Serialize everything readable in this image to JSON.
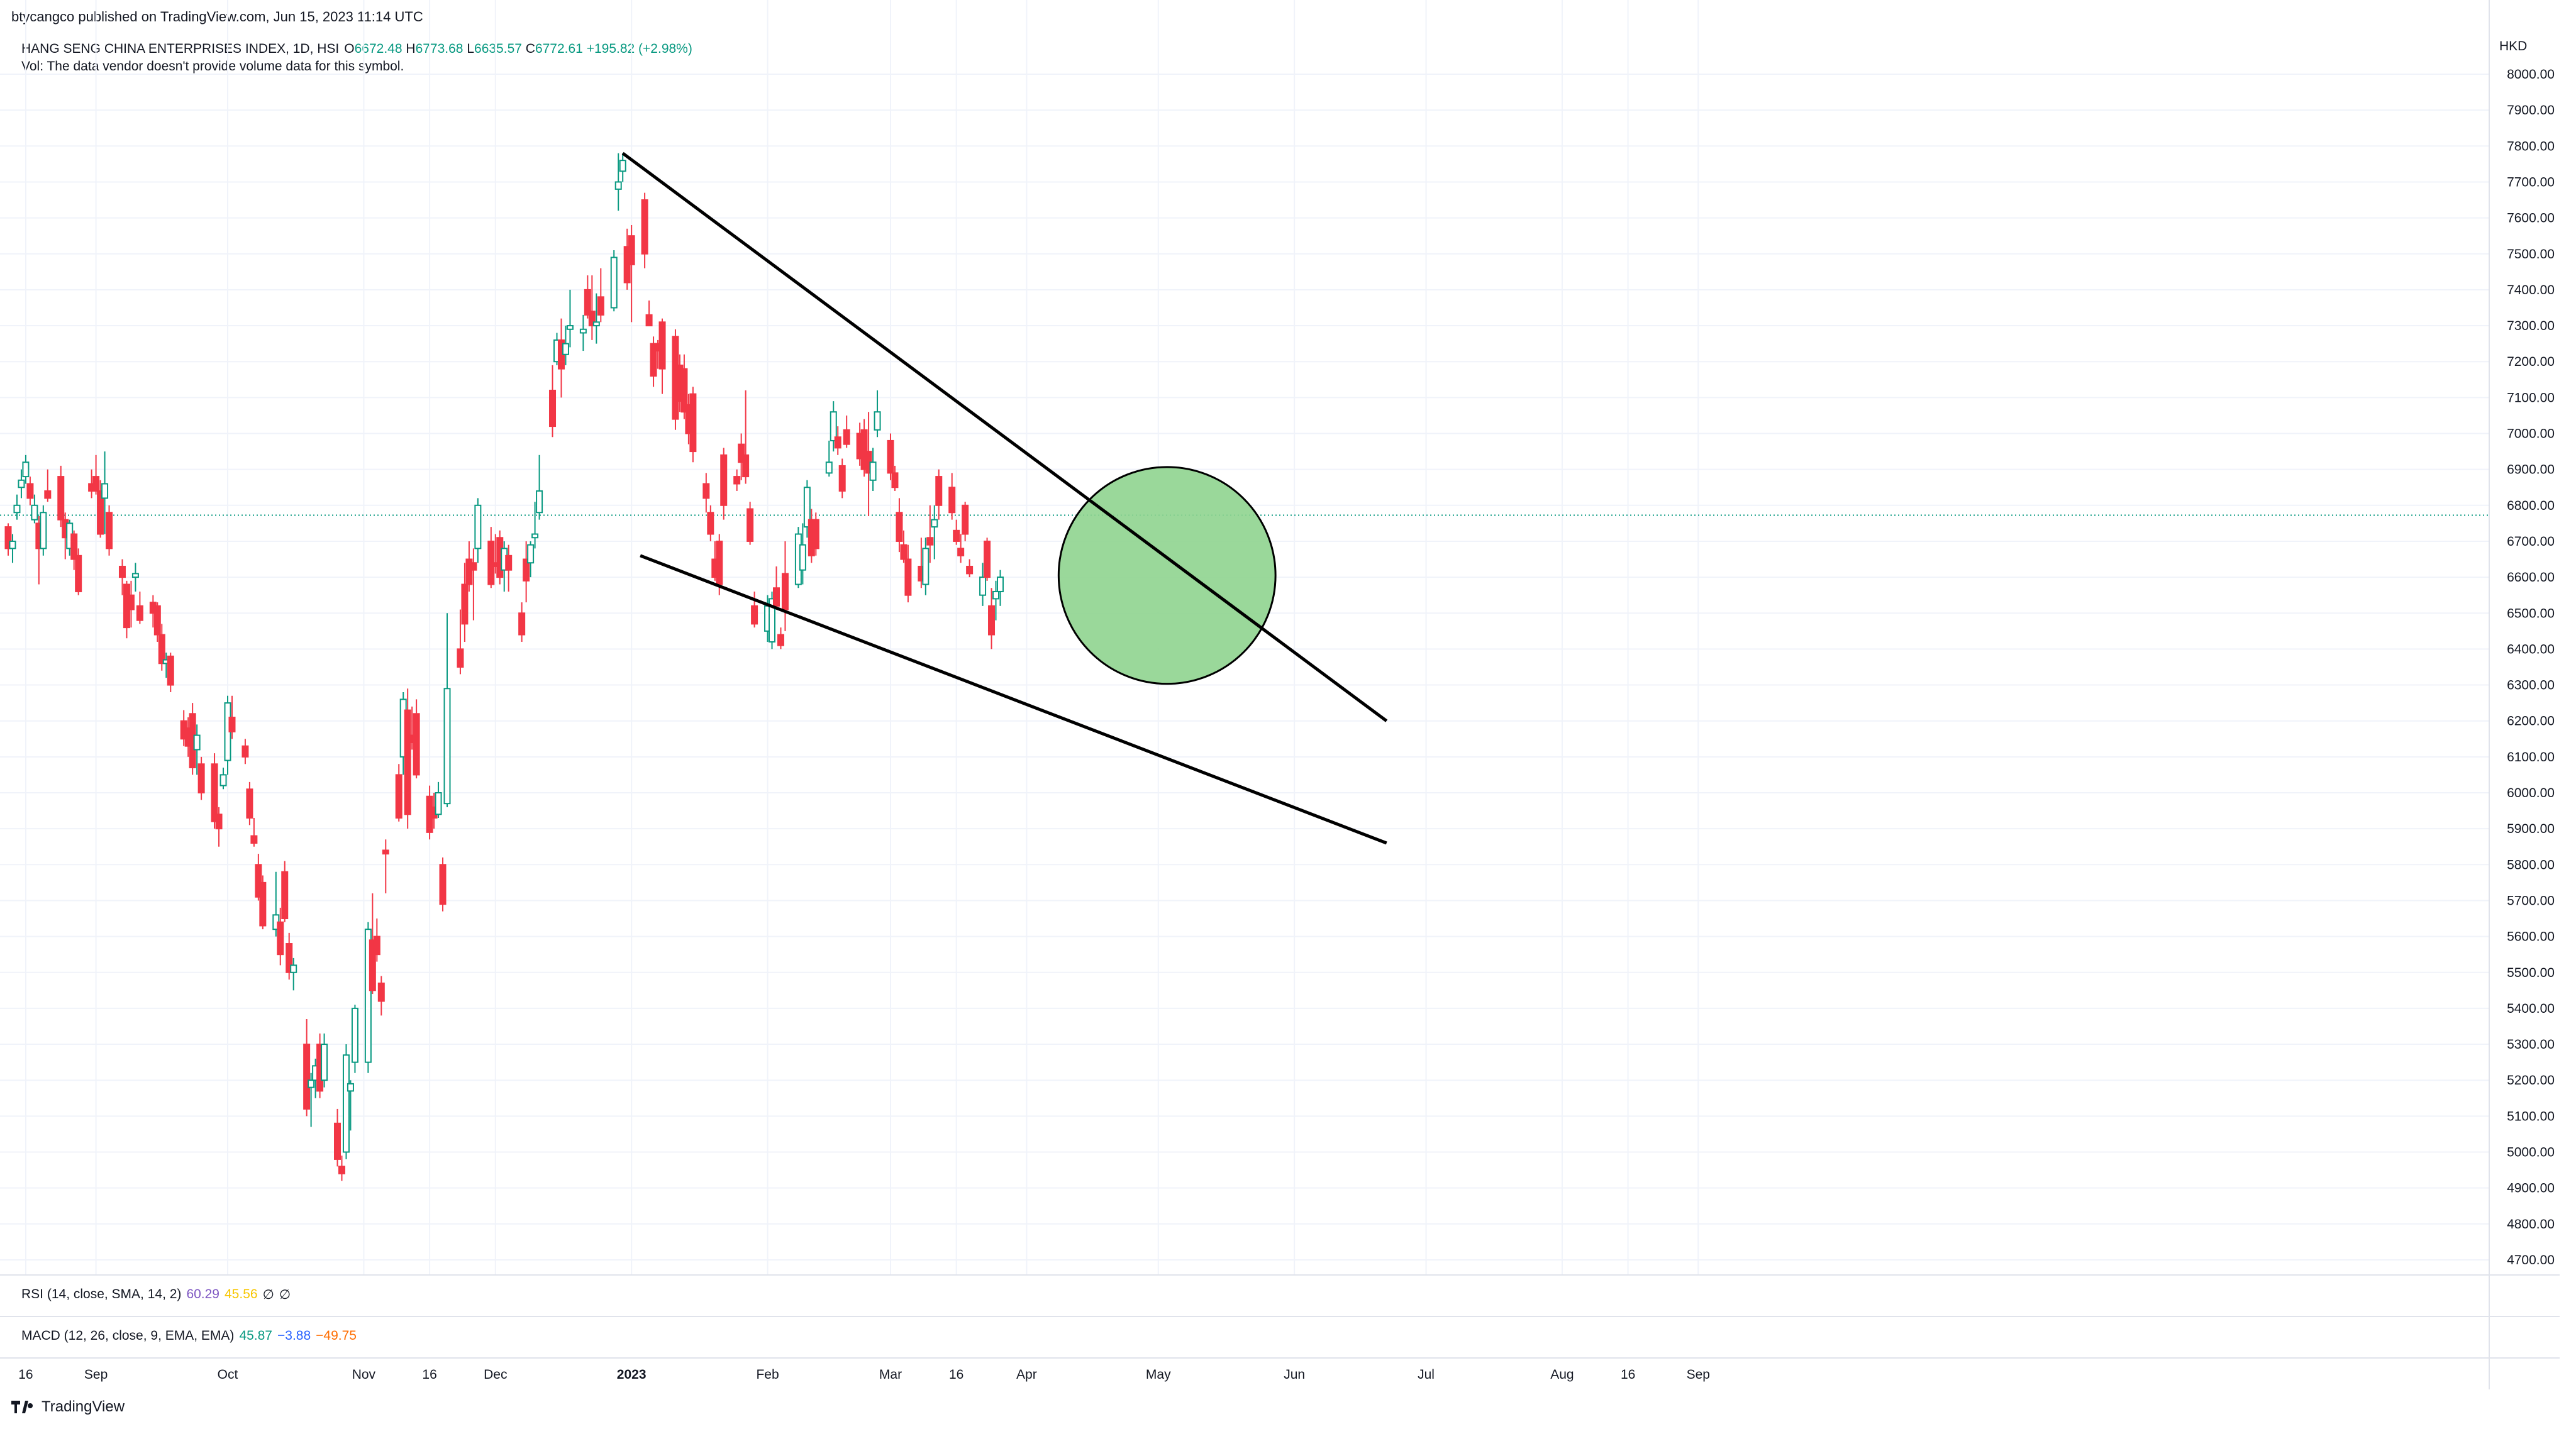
{
  "publisher_line": "btycangco published on TradingView.com, Jun 15, 2023 11:14 UTC",
  "legend": {
    "symbol": "HANG SENG CHINA ENTERPRISES INDEX, 1D, HSI",
    "o_label": "O",
    "o_value": "6672.48",
    "h_label": "H",
    "h_value": "6773.68",
    "l_label": "L",
    "l_value": "6635.57",
    "c_label": "C",
    "c_value": "6772.61",
    "change": "+195.82 (+2.98%)",
    "vol_note": "Vol: The data vendor doesn't provide volume data for this symbol."
  },
  "indicators": {
    "rsi": {
      "label": "RSI (14, close, SMA, 14, 2)",
      "v1": "60.29",
      "v2": "45.56",
      "v3": "∅",
      "v4": "∅"
    },
    "macd": {
      "label": "MACD (12, 26, close, 9, EMA, EMA)",
      "v1": "45.87",
      "v2": "−3.88",
      "v3": "−49.75"
    }
  },
  "brand": "TradingView",
  "colors": {
    "up": "#089981",
    "down": "#f23645",
    "trendline": "#000000",
    "highlight_fill": "#8fd48f",
    "highlight_stroke": "#000000",
    "last_price_line": "#089981"
  },
  "chart_data": {
    "type": "candlestick",
    "currency": "HKD",
    "y_ticks": [
      "8000.00",
      "7900.00",
      "7800.00",
      "7700.00",
      "7600.00",
      "7500.00",
      "7400.00",
      "7300.00",
      "7200.00",
      "7100.00",
      "7000.00",
      "6900.00",
      "6800.00",
      "6700.00",
      "6600.00",
      "6500.00",
      "6400.00",
      "6300.00",
      "6200.00",
      "6100.00",
      "6000.00",
      "5900.00",
      "5800.00",
      "5700.00",
      "5600.00",
      "5500.00",
      "5400.00",
      "5300.00",
      "5200.00",
      "5100.00",
      "5000.00",
      "4900.00",
      "4800.00",
      "4700.00"
    ],
    "ylim": [
      4650,
      8050
    ],
    "x_ticks": [
      {
        "label": "16",
        "day": 0,
        "bold": false
      },
      {
        "label": "Sep",
        "day": 16,
        "bold": false
      },
      {
        "label": "Oct",
        "day": 46,
        "bold": false
      },
      {
        "label": "Nov",
        "day": 77,
        "bold": false
      },
      {
        "label": "16",
        "day": 92,
        "bold": false
      },
      {
        "label": "Dec",
        "day": 107,
        "bold": false
      },
      {
        "label": "2023",
        "day": 138,
        "bold": true
      },
      {
        "label": "Feb",
        "day": 169,
        "bold": false
      },
      {
        "label": "Mar",
        "day": 197,
        "bold": false
      },
      {
        "label": "16",
        "day": 212,
        "bold": false
      },
      {
        "label": "Apr",
        "day": 228,
        "bold": false
      },
      {
        "label": "May",
        "day": 258,
        "bold": false
      },
      {
        "label": "Jun",
        "day": 289,
        "bold": false
      },
      {
        "label": "Jul",
        "day": 319,
        "bold": false
      },
      {
        "label": "Aug",
        "day": 350,
        "bold": false
      },
      {
        "label": "16",
        "day": 365,
        "bold": false
      },
      {
        "label": "Sep",
        "day": 381,
        "bold": false
      }
    ],
    "last_price": 6772.61,
    "candles": [
      [
        -4,
        6740,
        6750,
        6660,
        6680
      ],
      [
        -3,
        6680,
        6720,
        6640,
        6700
      ],
      [
        -2,
        6780,
        6830,
        6760,
        6800
      ],
      [
        -1,
        6850,
        6900,
        6820,
        6870
      ],
      [
        0,
        6880,
        6940,
        6860,
        6920
      ],
      [
        1,
        6860,
        6880,
        6800,
        6820
      ],
      [
        2,
        6760,
        6830,
        6750,
        6800
      ],
      [
        3,
        6750,
        6770,
        6580,
        6680
      ],
      [
        4,
        6680,
        6800,
        6660,
        6780
      ],
      [
        5,
        6840,
        6900,
        6810,
        6820
      ],
      [
        8,
        6880,
        6910,
        6740,
        6760
      ],
      [
        9,
        6760,
        6780,
        6650,
        6710
      ],
      [
        10,
        6680,
        6760,
        6660,
        6750
      ],
      [
        11,
        6720,
        6730,
        6620,
        6650
      ],
      [
        12,
        6660,
        6680,
        6550,
        6560
      ],
      [
        15,
        6860,
        6900,
        6820,
        6840
      ],
      [
        16,
        6880,
        6940,
        6830,
        6840
      ],
      [
        17,
        6840,
        6870,
        6710,
        6720
      ],
      [
        18,
        6820,
        6950,
        6720,
        6860
      ],
      [
        19,
        6780,
        6800,
        6660,
        6680
      ],
      [
        22,
        6630,
        6650,
        6550,
        6600
      ],
      [
        23,
        6580,
        6590,
        6430,
        6460
      ],
      [
        24,
        6550,
        6590,
        6460,
        6510
      ],
      [
        25,
        6600,
        6640,
        6560,
        6610
      ],
      [
        26,
        6520,
        6560,
        6470,
        6480
      ],
      [
        29,
        6530,
        6550,
        6460,
        6500
      ],
      [
        30,
        6520,
        6530,
        6420,
        6440
      ],
      [
        31,
        6440,
        6470,
        6340,
        6360
      ],
      [
        32,
        6360,
        6390,
        6320,
        6370
      ],
      [
        33,
        6380,
        6390,
        6280,
        6300
      ],
      [
        36,
        6200,
        6230,
        6130,
        6150
      ],
      [
        37,
        6180,
        6210,
        6100,
        6130
      ],
      [
        38,
        6220,
        6250,
        6050,
        6070
      ],
      [
        39,
        6120,
        6190,
        6050,
        6160
      ],
      [
        40,
        6080,
        6100,
        5980,
        6000
      ],
      [
        43,
        6080,
        6110,
        5900,
        5920
      ],
      [
        44,
        5940,
        5960,
        5850,
        5900
      ],
      [
        45,
        6020,
        6070,
        6010,
        6050
      ],
      [
        46,
        6090,
        6270,
        6050,
        6250
      ],
      [
        47,
        6210,
        6270,
        6150,
        6170
      ],
      [
        50,
        6130,
        6150,
        6080,
        6100
      ],
      [
        51,
        6010,
        6030,
        5910,
        5930
      ],
      [
        52,
        5880,
        5930,
        5850,
        5860
      ],
      [
        53,
        5800,
        5830,
        5700,
        5710
      ],
      [
        54,
        5750,
        5770,
        5620,
        5630
      ],
      [
        57,
        5620,
        5780,
        5600,
        5660
      ],
      [
        58,
        5640,
        5680,
        5520,
        5550
      ],
      [
        59,
        5780,
        5810,
        5640,
        5650
      ],
      [
        60,
        5580,
        5610,
        5480,
        5500
      ],
      [
        61,
        5500,
        5540,
        5450,
        5520
      ],
      [
        64,
        5300,
        5370,
        5100,
        5120
      ],
      [
        65,
        5180,
        5220,
        5070,
        5200
      ],
      [
        66,
        5200,
        5260,
        5150,
        5240
      ],
      [
        67,
        5300,
        5330,
        5150,
        5170
      ],
      [
        68,
        5200,
        5330,
        5180,
        5300
      ],
      [
        71,
        5080,
        5120,
        4960,
        4980
      ],
      [
        72,
        4960,
        4990,
        4920,
        4940
      ],
      [
        73,
        5000,
        5300,
        4980,
        5270
      ],
      [
        74,
        5170,
        5200,
        5060,
        5190
      ],
      [
        75,
        5250,
        5410,
        5220,
        5400
      ],
      [
        78,
        5250,
        5640,
        5220,
        5620
      ],
      [
        79,
        5590,
        5720,
        5440,
        5450
      ],
      [
        80,
        5600,
        5650,
        5530,
        5550
      ],
      [
        81,
        5470,
        5490,
        5380,
        5420
      ],
      [
        82,
        5840,
        5870,
        5720,
        5830
      ],
      [
        85,
        6050,
        6080,
        5920,
        5930
      ],
      [
        86,
        6100,
        6280,
        6050,
        6260
      ],
      [
        87,
        6230,
        6290,
        5900,
        5940
      ],
      [
        88,
        6160,
        6240,
        6120,
        6140
      ],
      [
        89,
        6220,
        6260,
        6040,
        6050
      ],
      [
        92,
        5990,
        6020,
        5870,
        5890
      ],
      [
        93,
        5960,
        6000,
        5900,
        5930
      ],
      [
        94,
        5940,
        6030,
        5930,
        6000
      ],
      [
        95,
        5800,
        5820,
        5670,
        5690
      ],
      [
        96,
        5970,
        6500,
        5960,
        6290
      ],
      [
        99,
        6400,
        6510,
        6330,
        6350
      ],
      [
        100,
        6580,
        6640,
        6420,
        6470
      ],
      [
        101,
        6650,
        6700,
        6560,
        6580
      ],
      [
        102,
        6640,
        6680,
        6480,
        6620
      ],
      [
        103,
        6680,
        6820,
        6640,
        6800
      ],
      [
        106,
        6700,
        6740,
        6570,
        6580
      ],
      [
        107,
        6640,
        6720,
        6610,
        6630
      ],
      [
        108,
        6710,
        6730,
        6580,
        6600
      ],
      [
        109,
        6620,
        6700,
        6560,
        6680
      ],
      [
        110,
        6660,
        6690,
        6560,
        6620
      ],
      [
        113,
        6500,
        6530,
        6420,
        6440
      ],
      [
        114,
        6650,
        6700,
        6530,
        6590
      ],
      [
        115,
        6640,
        6700,
        6600,
        6690
      ],
      [
        116,
        6710,
        6810,
        6680,
        6720
      ],
      [
        117,
        6780,
        6940,
        6760,
        6840
      ],
      [
        120,
        7120,
        7190,
        6990,
        7020
      ],
      [
        121,
        7200,
        7280,
        7190,
        7260
      ],
      [
        122,
        7260,
        7320,
        7100,
        7180
      ],
      [
        123,
        7220,
        7300,
        7190,
        7250
      ],
      [
        124,
        7290,
        7400,
        7240,
        7300
      ],
      [
        127,
        7280,
        7330,
        7230,
        7290
      ],
      [
        128,
        7400,
        7440,
        7320,
        7330
      ],
      [
        129,
        7340,
        7440,
        7260,
        7300
      ],
      [
        130,
        7300,
        7390,
        7250,
        7310
      ],
      [
        131,
        7380,
        7460,
        7310,
        7330
      ],
      [
        134,
        7350,
        7510,
        7340,
        7490
      ],
      [
        135,
        7680,
        7780,
        7620,
        7700
      ],
      [
        136,
        7730,
        7780,
        7700,
        7760
      ],
      [
        137,
        7520,
        7570,
        7400,
        7420
      ],
      [
        138,
        7550,
        7580,
        7310,
        7470
      ],
      [
        141,
        7650,
        7670,
        7460,
        7500
      ],
      [
        142,
        7330,
        7370,
        7300,
        7300
      ],
      [
        143,
        7250,
        7270,
        7130,
        7160
      ],
      [
        144,
        7250,
        7260,
        7180,
        7230
      ],
      [
        145,
        7310,
        7320,
        7110,
        7180
      ],
      [
        148,
        7270,
        7290,
        7010,
        7040
      ],
      [
        149,
        7190,
        7220,
        7060,
        7090
      ],
      [
        150,
        7180,
        7220,
        7040,
        7060
      ],
      [
        151,
        7080,
        7110,
        6970,
        7000
      ],
      [
        152,
        7110,
        7130,
        6920,
        6950
      ],
      [
        155,
        6860,
        6890,
        6780,
        6820
      ],
      [
        156,
        6780,
        6800,
        6700,
        6720
      ],
      [
        157,
        6650,
        6700,
        6590,
        6600
      ],
      [
        158,
        6700,
        6720,
        6550,
        6580
      ],
      [
        159,
        6940,
        6960,
        6760,
        6800
      ],
      [
        162,
        6880,
        6900,
        6840,
        6860
      ],
      [
        163,
        6970,
        7000,
        6870,
        6920
      ],
      [
        164,
        6940,
        7120,
        6860,
        6880
      ],
      [
        165,
        6790,
        6810,
        6690,
        6700
      ],
      [
        166,
        6520,
        6560,
        6460,
        6470
      ],
      [
        169,
        6450,
        6550,
        6420,
        6520
      ],
      [
        170,
        6420,
        6560,
        6400,
        6540
      ],
      [
        171,
        6570,
        6630,
        6510,
        6520
      ],
      [
        172,
        6440,
        6460,
        6400,
        6410
      ],
      [
        173,
        6610,
        6700,
        6450,
        6510
      ],
      [
        176,
        6580,
        6740,
        6570,
        6720
      ],
      [
        177,
        6620,
        6750,
        6580,
        6690
      ],
      [
        178,
        6740,
        6870,
        6710,
        6850
      ],
      [
        179,
        6760,
        6790,
        6640,
        6660
      ],
      [
        180,
        6760,
        6780,
        6660,
        6680
      ],
      [
        183,
        6890,
        6980,
        6880,
        6920
      ],
      [
        184,
        6980,
        7090,
        6950,
        7060
      ],
      [
        185,
        6990,
        7020,
        6940,
        6960
      ],
      [
        186,
        6910,
        6930,
        6820,
        6840
      ],
      [
        187,
        7010,
        7050,
        6960,
        6970
      ],
      [
        190,
        7000,
        7030,
        6910,
        6930
      ],
      [
        191,
        7010,
        7040,
        6880,
        6900
      ],
      [
        192,
        6950,
        7060,
        6770,
        6890
      ],
      [
        193,
        6870,
        6960,
        6840,
        6920
      ],
      [
        194,
        7010,
        7120,
        6990,
        7060
      ],
      [
        197,
        6980,
        7000,
        6870,
        6890
      ],
      [
        198,
        6890,
        6910,
        6840,
        6850
      ],
      [
        199,
        6780,
        6820,
        6670,
        6700
      ],
      [
        200,
        6690,
        6730,
        6640,
        6650
      ],
      [
        201,
        6650,
        6690,
        6530,
        6550
      ],
      [
        204,
        6630,
        6710,
        6570,
        6590
      ],
      [
        205,
        6580,
        6710,
        6550,
        6680
      ],
      [
        206,
        6710,
        6800,
        6640,
        6690
      ],
      [
        207,
        6740,
        6800,
        6650,
        6760
      ],
      [
        208,
        6880,
        6900,
        6760,
        6800
      ],
      [
        211,
        6850,
        6890,
        6760,
        6780
      ],
      [
        212,
        6730,
        6760,
        6690,
        6700
      ],
      [
        213,
        6680,
        6720,
        6640,
        6660
      ],
      [
        214,
        6800,
        6810,
        6700,
        6720
      ],
      [
        215,
        6630,
        6650,
        6600,
        6610
      ],
      [
        218,
        6550,
        6640,
        6520,
        6600
      ],
      [
        219,
        6700,
        6710,
        6590,
        6600
      ],
      [
        220,
        6520,
        6570,
        6400,
        6440
      ],
      [
        221,
        6540,
        6590,
        6480,
        6560
      ],
      [
        222,
        6560,
        6620,
        6520,
        6600
      ]
    ],
    "trendlines": [
      {
        "name": "upper",
        "from": {
          "day": 136,
          "price": 7780
        },
        "to": {
          "day": 310,
          "price": 6200
        }
      },
      {
        "name": "lower",
        "from": {
          "day": 140,
          "price": 6660
        },
        "to": {
          "day": 310,
          "price": 5860
        }
      }
    ],
    "highlight": {
      "center_day": 260,
      "center_price": 6605,
      "radius_days": 9.5
    }
  }
}
